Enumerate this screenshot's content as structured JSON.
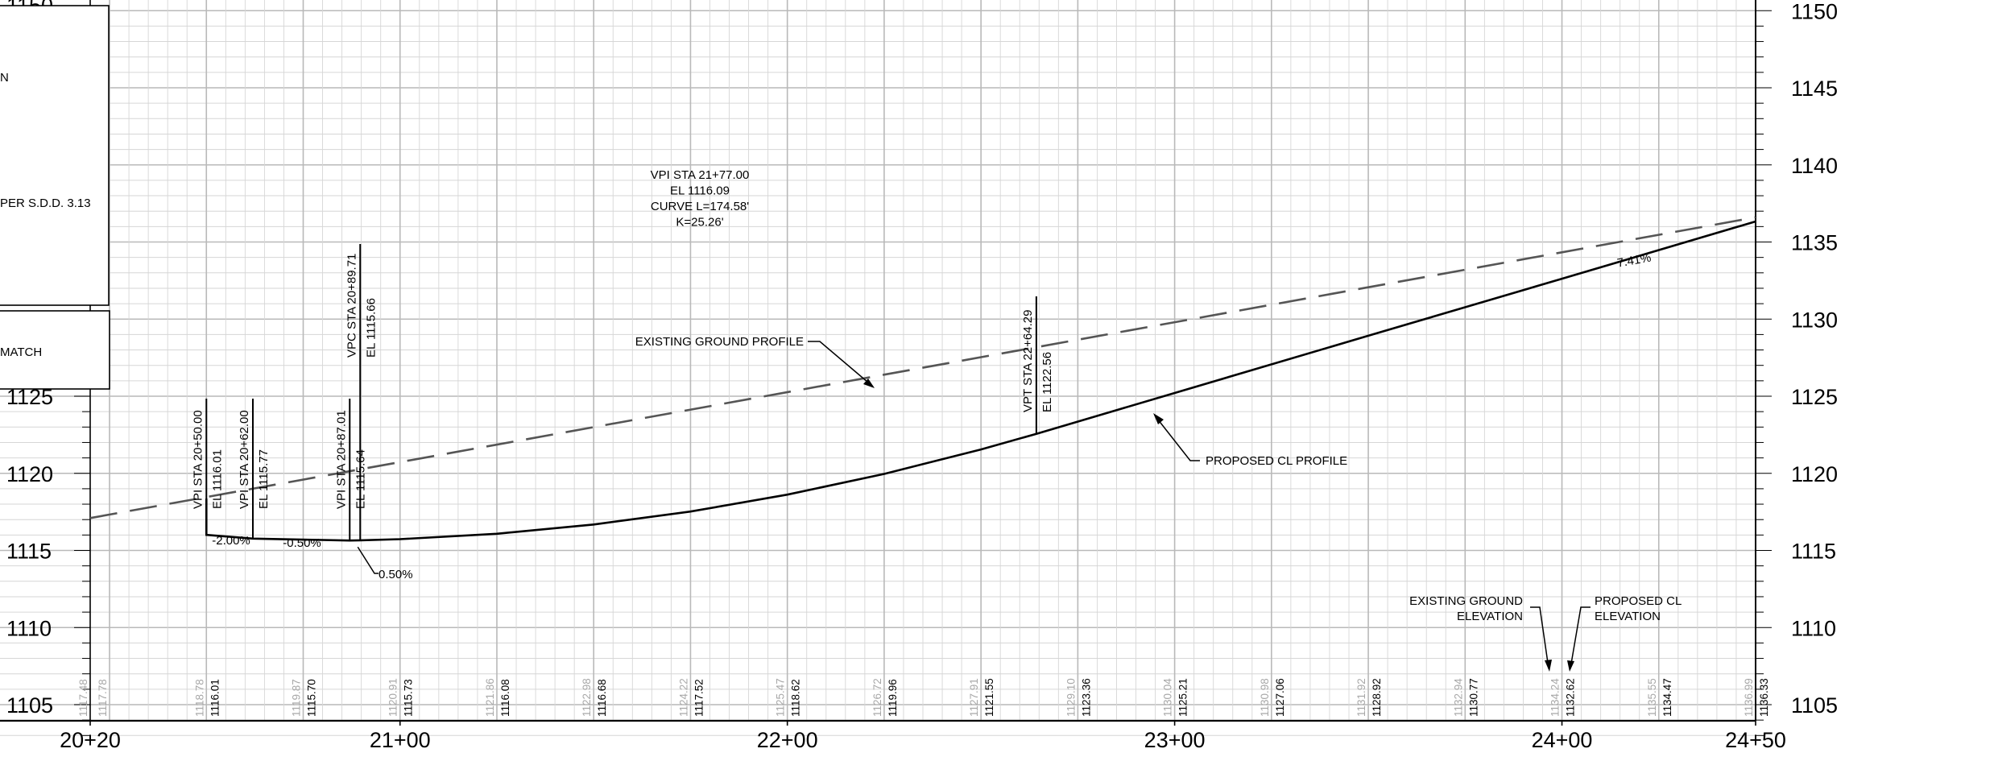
{
  "chart_data": {
    "type": "line",
    "x_ticks": [
      {
        "sta": 2020,
        "label": "20+20"
      },
      {
        "sta": 2100,
        "label": "21+00"
      },
      {
        "sta": 2200,
        "label": "22+00"
      },
      {
        "sta": 2300,
        "label": "23+00"
      },
      {
        "sta": 2400,
        "label": "24+00"
      },
      {
        "sta": 2450,
        "label": "24+50"
      }
    ],
    "y_ticks": [
      1105,
      1110,
      1115,
      1120,
      1125,
      1130,
      1135,
      1140,
      1145,
      1150
    ],
    "xlim": [
      2020,
      2450
    ],
    "ylim": [
      1103,
      1151
    ],
    "grid": true,
    "series": [
      {
        "style": "dashed",
        "x": [
          2020,
          2450
        ],
        "y": [
          1117.1,
          1136.6
        ]
      },
      {
        "style": "solid",
        "x": [
          2050,
          2062,
          2087.01,
          2089.71,
          2100,
          2125,
          2150,
          2175,
          2200,
          2225,
          2250,
          2264.29,
          2300,
          2350,
          2400,
          2450
        ],
        "y": [
          1116.01,
          1115.77,
          1115.64,
          1115.66,
          1115.73,
          1116.08,
          1116.68,
          1117.52,
          1118.62,
          1119.96,
          1121.55,
          1122.56,
          1125.21,
          1128.92,
          1132.62,
          1136.33
        ]
      }
    ],
    "existing_elevations": [
      {
        "sta": 2020,
        "value": "1117.48"
      },
      {
        "sta": 2025,
        "value": "1117.78"
      },
      {
        "sta": 2050,
        "value": "1118.78"
      },
      {
        "sta": 2075,
        "value": "1119.87"
      },
      {
        "sta": 2100,
        "value": "1120.91"
      },
      {
        "sta": 2125,
        "value": "1121.86"
      },
      {
        "sta": 2150,
        "value": "1122.98"
      },
      {
        "sta": 2175,
        "value": "1124.22"
      },
      {
        "sta": 2200,
        "value": "1125.47"
      },
      {
        "sta": 2225,
        "value": "1126.72"
      },
      {
        "sta": 2250,
        "value": "1127.91"
      },
      {
        "sta": 2275,
        "value": "1129.10"
      },
      {
        "sta": 2300,
        "value": "1130.04"
      },
      {
        "sta": 2325,
        "value": "1130.98"
      },
      {
        "sta": 2350,
        "value": "1131.92"
      },
      {
        "sta": 2375,
        "value": "1132.94"
      },
      {
        "sta": 2400,
        "value": "1134.24"
      },
      {
        "sta": 2425,
        "value": "1135.55"
      },
      {
        "sta": 2450,
        "value": "1136.99"
      }
    ],
    "proposed_elevations": [
      {
        "sta": 2050,
        "value": "1116.01"
      },
      {
        "sta": 2075,
        "value": "1115.70"
      },
      {
        "sta": 2100,
        "value": "1115.73"
      },
      {
        "sta": 2125,
        "value": "1116.08"
      },
      {
        "sta": 2150,
        "value": "1116.68"
      },
      {
        "sta": 2175,
        "value": "1117.52"
      },
      {
        "sta": 2200,
        "value": "1118.62"
      },
      {
        "sta": 2225,
        "value": "1119.96"
      },
      {
        "sta": 2250,
        "value": "1121.55"
      },
      {
        "sta": 2275,
        "value": "1123.36"
      },
      {
        "sta": 2300,
        "value": "1125.21"
      },
      {
        "sta": 2325,
        "value": "1127.06"
      },
      {
        "sta": 2350,
        "value": "1128.92"
      },
      {
        "sta": 2375,
        "value": "1130.77"
      },
      {
        "sta": 2400,
        "value": "1132.62"
      },
      {
        "sta": 2425,
        "value": "1134.47"
      },
      {
        "sta": 2450,
        "value": "1136.33"
      }
    ],
    "annotations": {
      "vpi1": [
        "VPI STA 20+50.00",
        "EL 1116.01"
      ],
      "vpi2": [
        "VPI STA 20+62.00",
        "EL 1115.77"
      ],
      "vpi3": [
        "VPI STA 20+87.01",
        "EL 1115.64"
      ],
      "vpc": [
        "VPC STA 20+89.71",
        "EL 1115.66"
      ],
      "vpt": [
        "VPT STA 22+64.29",
        "EL 1122.56"
      ],
      "curve": [
        "VPI STA 21+77.00",
        "EL 1116.09",
        "CURVE L=174.58'",
        "K=25.26'"
      ],
      "grade1": "-2.00%",
      "grade2": "-0.50%",
      "grade3": "0.50%",
      "grade4": "7.41%",
      "existing_profile": "EXISTING GROUND PROFILE",
      "proposed_profile": "PROPOSED CL PROFILE",
      "existing_elev_label": [
        "EXISTING GROUND",
        "ELEVATION"
      ],
      "proposed_elev_label": [
        "PROPOSED CL",
        "ELEVATION"
      ]
    }
  },
  "legend_box": {
    "line1": "N",
    "line2": "PER S.D.D. 3.13",
    "line3": "MATCH",
    "cut_label": "1150"
  },
  "colors": {
    "grid_major": "#b9b9b9",
    "grid_minor": "#d6d6d6",
    "existing_line": "#555555",
    "proposed_line": "#000000",
    "existing_text": "#a8a8a8"
  }
}
